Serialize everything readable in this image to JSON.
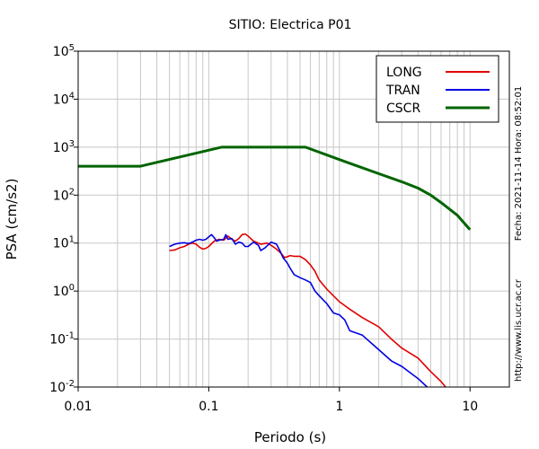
{
  "chart_data": {
    "type": "line",
    "title": "SITIO: Electrica P01",
    "xlabel": "Periodo (s)",
    "ylabel": "PSA (cm/s2)",
    "x_scale": "log",
    "y_scale": "log",
    "xlim": [
      0.01,
      20
    ],
    "ylim": [
      0.01,
      100000
    ],
    "grid": true,
    "legend_position": "top-right",
    "x_ticks": [
      {
        "value": 0.01,
        "label": "0.01"
      },
      {
        "value": 0.1,
        "label": "0.1"
      },
      {
        "value": 1,
        "label": "1"
      },
      {
        "value": 10,
        "label": "10"
      }
    ],
    "y_ticks": [
      {
        "value": 0.01,
        "base": "10",
        "exp": "-2"
      },
      {
        "value": 0.1,
        "base": "10",
        "exp": "-1"
      },
      {
        "value": 1,
        "base": "10",
        "exp": "0"
      },
      {
        "value": 10,
        "base": "10",
        "exp": "1"
      },
      {
        "value": 100,
        "base": "10",
        "exp": "2"
      },
      {
        "value": 1000,
        "base": "10",
        "exp": "3"
      },
      {
        "value": 10000,
        "base": "10",
        "exp": "4"
      },
      {
        "value": 100000,
        "base": "10",
        "exp": "5"
      }
    ],
    "series": [
      {
        "name": "LONG",
        "color": "#e00000",
        "points": [
          [
            0.05,
            7.0
          ],
          [
            0.055,
            7.2
          ],
          [
            0.06,
            8.0
          ],
          [
            0.065,
            8.5
          ],
          [
            0.07,
            9.5
          ],
          [
            0.075,
            10.0
          ],
          [
            0.08,
            9.5
          ],
          [
            0.085,
            8.2
          ],
          [
            0.09,
            7.5
          ],
          [
            0.095,
            7.8
          ],
          [
            0.1,
            8.5
          ],
          [
            0.11,
            11.0
          ],
          [
            0.12,
            12.0
          ],
          [
            0.13,
            11.5
          ],
          [
            0.14,
            14.0
          ],
          [
            0.15,
            12.0
          ],
          [
            0.16,
            11.0
          ],
          [
            0.17,
            12.5
          ],
          [
            0.18,
            15.0
          ],
          [
            0.19,
            15.5
          ],
          [
            0.2,
            14.0
          ],
          [
            0.22,
            11.0
          ],
          [
            0.25,
            9.5
          ],
          [
            0.28,
            10.0
          ],
          [
            0.3,
            9.0
          ],
          [
            0.33,
            7.5
          ],
          [
            0.36,
            6.0
          ],
          [
            0.38,
            5.0
          ],
          [
            0.4,
            5.2
          ],
          [
            0.42,
            5.5
          ],
          [
            0.45,
            5.3
          ],
          [
            0.5,
            5.3
          ],
          [
            0.55,
            4.5
          ],
          [
            0.6,
            3.5
          ],
          [
            0.65,
            2.6
          ],
          [
            0.7,
            1.7
          ],
          [
            0.8,
            1.1
          ],
          [
            0.9,
            0.8
          ],
          [
            1.0,
            0.6
          ],
          [
            1.2,
            0.42
          ],
          [
            1.5,
            0.28
          ],
          [
            2.0,
            0.18
          ],
          [
            2.5,
            0.1
          ],
          [
            3.0,
            0.065
          ],
          [
            4.0,
            0.04
          ],
          [
            5.0,
            0.021
          ],
          [
            6.0,
            0.013
          ],
          [
            6.5,
            0.01
          ]
        ]
      },
      {
        "name": "TRAN",
        "color": "#0000e0",
        "points": [
          [
            0.05,
            8.5
          ],
          [
            0.055,
            9.5
          ],
          [
            0.06,
            10.0
          ],
          [
            0.065,
            10.2
          ],
          [
            0.07,
            9.8
          ],
          [
            0.075,
            10.5
          ],
          [
            0.08,
            11.5
          ],
          [
            0.085,
            12.0
          ],
          [
            0.09,
            11.5
          ],
          [
            0.095,
            12.0
          ],
          [
            0.1,
            13.5
          ],
          [
            0.105,
            15.0
          ],
          [
            0.11,
            13.0
          ],
          [
            0.115,
            11.0
          ],
          [
            0.12,
            11.5
          ],
          [
            0.13,
            12.0
          ],
          [
            0.135,
            15.0
          ],
          [
            0.14,
            12.0
          ],
          [
            0.15,
            12.5
          ],
          [
            0.16,
            9.5
          ],
          [
            0.17,
            10.5
          ],
          [
            0.18,
            10.0
          ],
          [
            0.19,
            8.5
          ],
          [
            0.2,
            8.5
          ],
          [
            0.22,
            10.5
          ],
          [
            0.24,
            9.0
          ],
          [
            0.25,
            7.0
          ],
          [
            0.27,
            8.0
          ],
          [
            0.3,
            10.5
          ],
          [
            0.33,
            9.5
          ],
          [
            0.35,
            7.0
          ],
          [
            0.37,
            5.0
          ],
          [
            0.4,
            3.8
          ],
          [
            0.42,
            3.0
          ],
          [
            0.45,
            2.2
          ],
          [
            0.5,
            1.9
          ],
          [
            0.55,
            1.7
          ],
          [
            0.6,
            1.5
          ],
          [
            0.65,
            1.0
          ],
          [
            0.7,
            0.8
          ],
          [
            0.8,
            0.55
          ],
          [
            0.9,
            0.35
          ],
          [
            1.0,
            0.32
          ],
          [
            1.1,
            0.25
          ],
          [
            1.2,
            0.15
          ],
          [
            1.5,
            0.12
          ],
          [
            2.0,
            0.06
          ],
          [
            2.5,
            0.035
          ],
          [
            3.0,
            0.027
          ],
          [
            4.0,
            0.015
          ],
          [
            4.7,
            0.01
          ]
        ]
      },
      {
        "name": "CSCR",
        "color": "#006400",
        "points": [
          [
            0.01,
            400
          ],
          [
            0.03,
            400
          ],
          [
            0.125,
            1000
          ],
          [
            0.55,
            1000
          ],
          [
            1.0,
            550
          ],
          [
            2.0,
            280
          ],
          [
            3.0,
            190
          ],
          [
            4.0,
            140
          ],
          [
            5.0,
            100
          ],
          [
            6.0,
            70
          ],
          [
            8.0,
            38
          ],
          [
            10.0,
            19
          ]
        ]
      }
    ],
    "side_annotations": {
      "timestamp": "Fecha: 2021-11-14 Hora: 08:52:01",
      "website": "http://www.lis.ucr.ac.cr"
    }
  }
}
